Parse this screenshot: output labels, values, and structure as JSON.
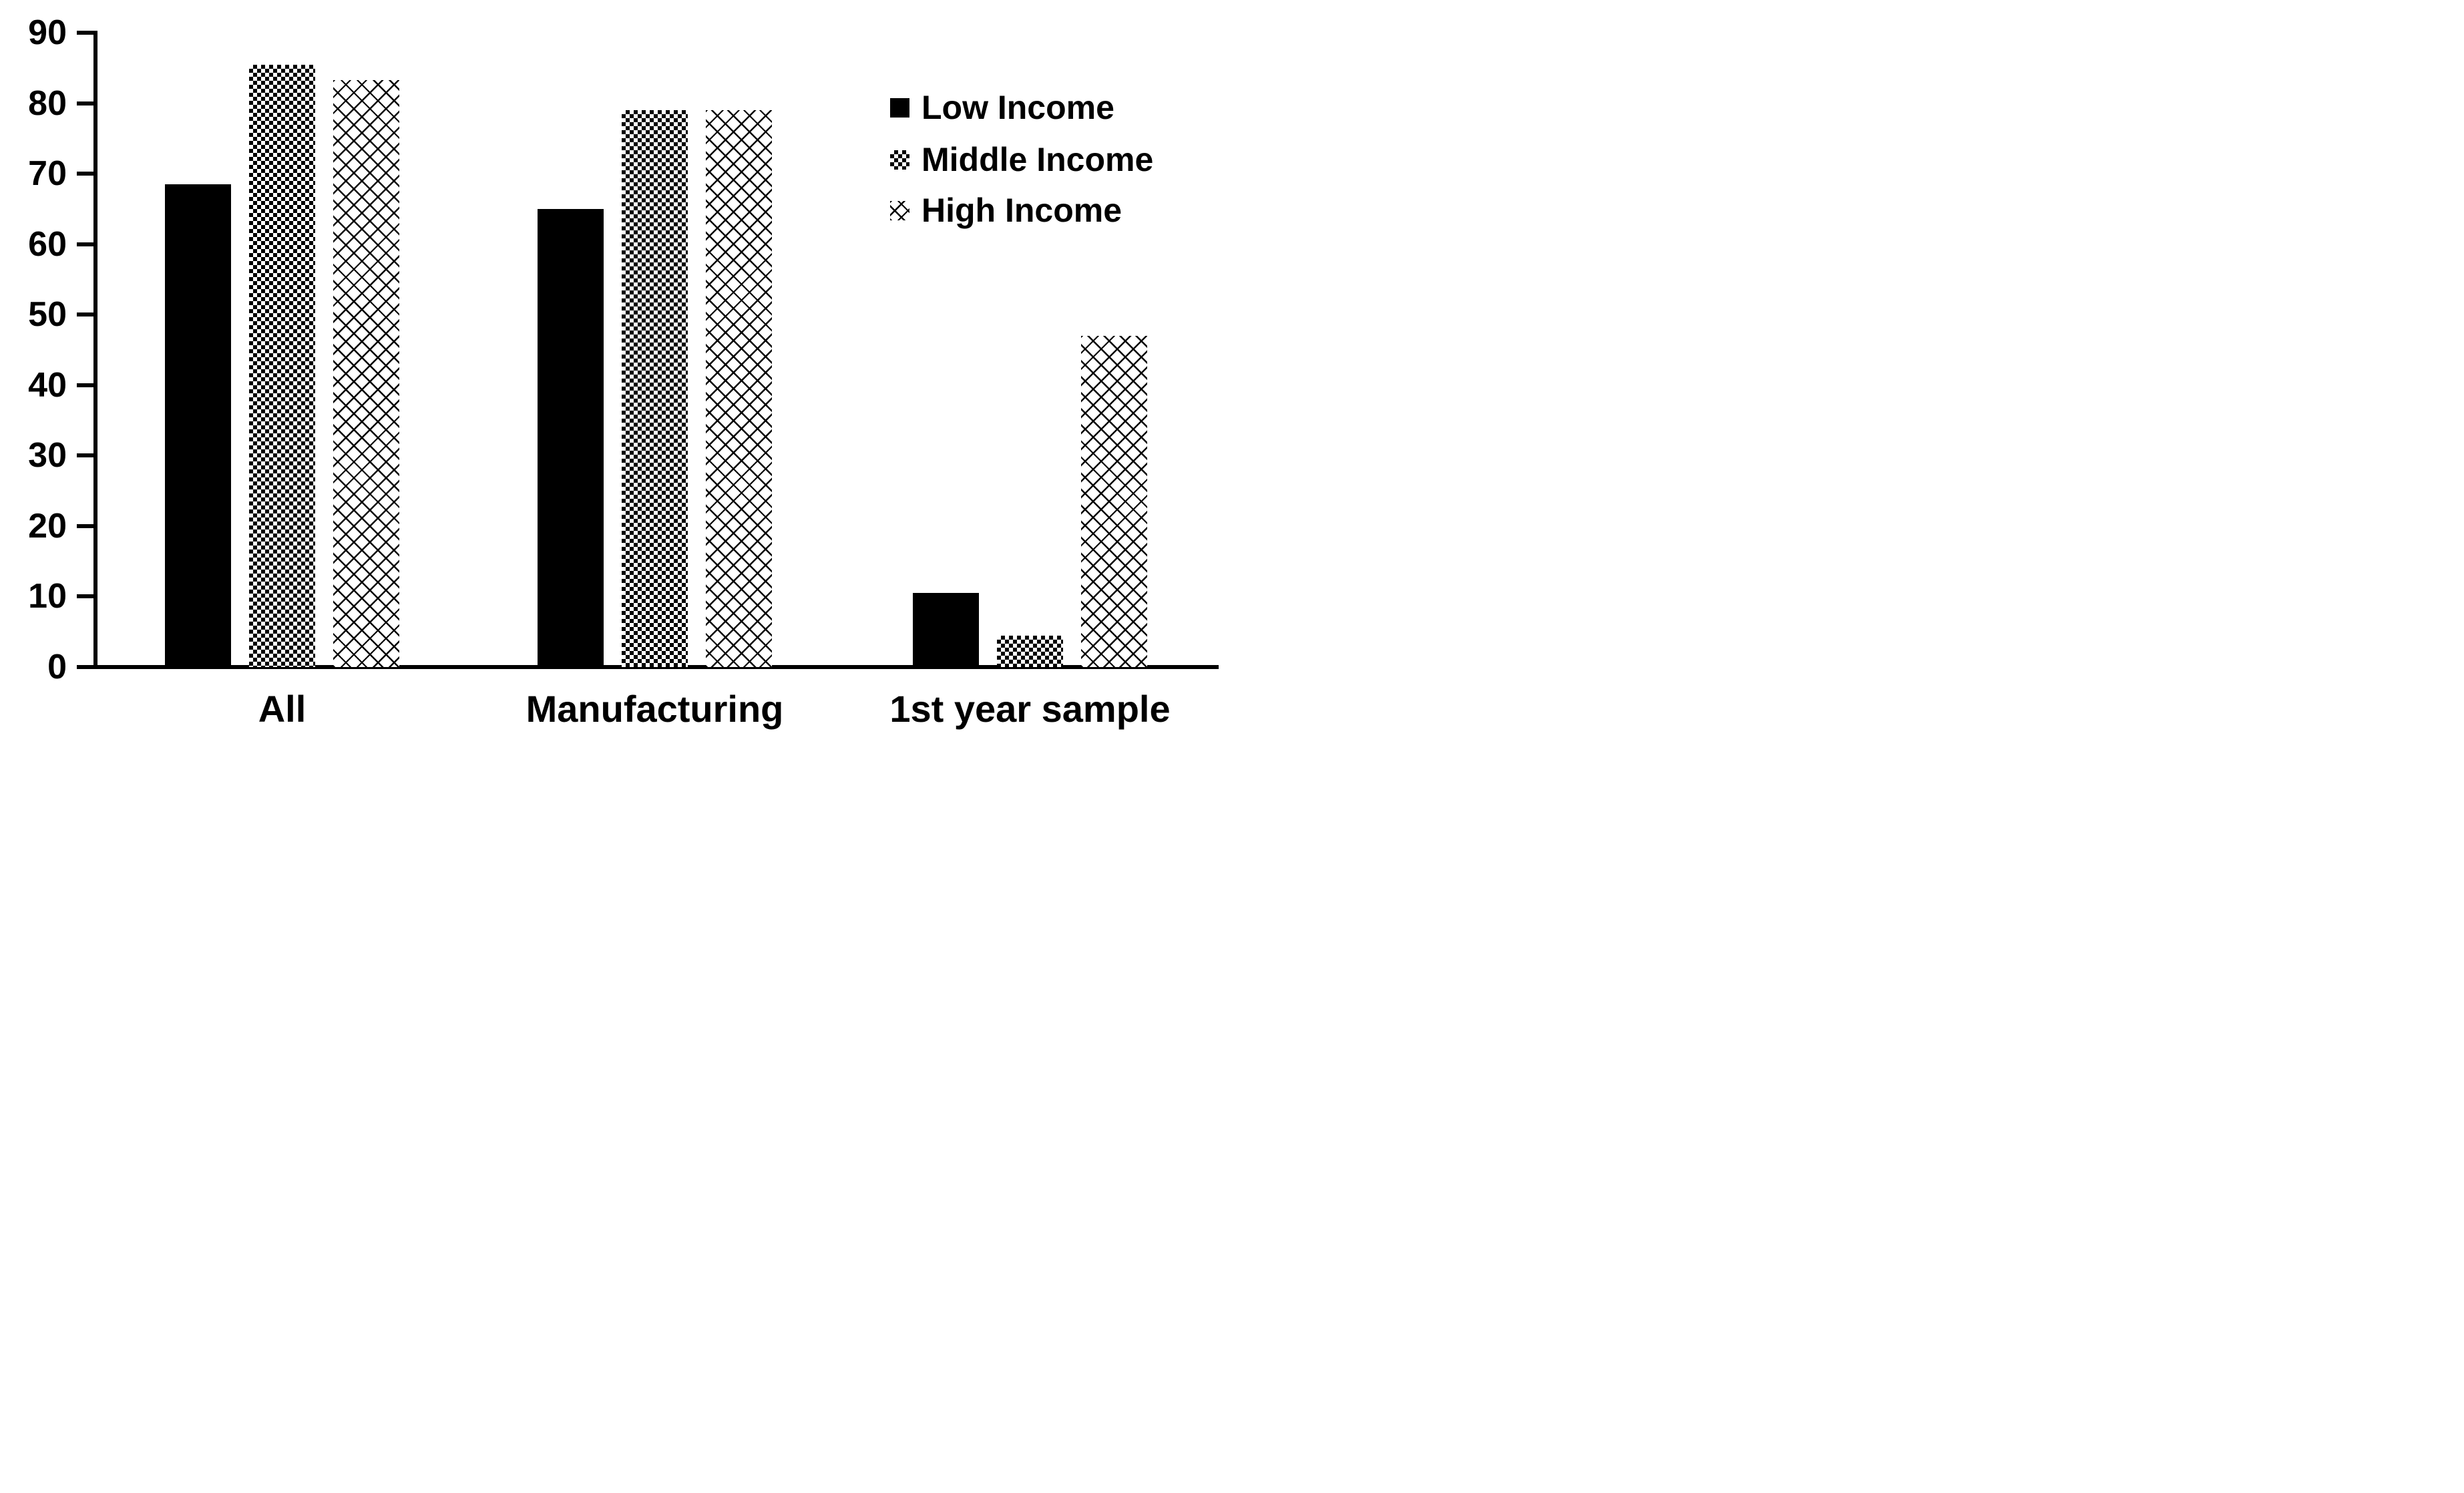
{
  "figure": {
    "background_color": "#ffffff",
    "ink_color": "#000000"
  },
  "legend": {
    "items": [
      {
        "label": "Low Income",
        "swatch_icon": "solid-black-square-icon",
        "pattern": "solid-black"
      },
      {
        "label": "Middle Income",
        "swatch_icon": "checker-square-icon",
        "pattern": "checker"
      },
      {
        "label": "High Income",
        "swatch_icon": "crosshatch-square-icon",
        "pattern": "crosshatch"
      }
    ]
  },
  "chart_data": {
    "type": "bar",
    "title": "",
    "xlabel": "",
    "ylabel": "",
    "categories": [
      "All",
      "Manufacturing",
      "1st year sample"
    ],
    "series": [
      {
        "name": "Low Income",
        "pattern": "solid-black",
        "values": [
          68.5,
          65,
          10.5
        ]
      },
      {
        "name": "Middle Income",
        "pattern": "checker",
        "values": [
          85.5,
          79,
          4.5
        ]
      },
      {
        "name": "High Income",
        "pattern": "crosshatch",
        "values": [
          83.3,
          79,
          47
        ]
      }
    ],
    "ylim": [
      0,
      90
    ],
    "yticks": [
      0,
      10,
      20,
      30,
      40,
      50,
      60,
      70,
      80,
      90
    ],
    "grid": false,
    "legend_position": "upper right",
    "bar_colors": {
      "fill": "#000000",
      "background": "#ffffff"
    }
  }
}
